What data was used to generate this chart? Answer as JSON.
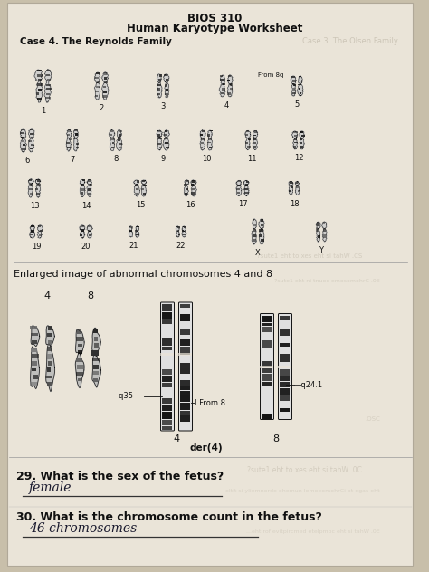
{
  "title_line1": "BIOS 310",
  "title_line2": "Human Karyotype Worksheet",
  "case_label": "Case 4. The Reynolds Family",
  "ghost_text_right": "Case 3. The Olsen Family",
  "enlarged_label": "Enlarged image of abnormal chromosomes 4 and 8",
  "q29_question": "29. What is the sex of the fetus?",
  "q29_answer": "female",
  "q30_question": "30. What is the chromosome count in the fetus?",
  "q30_answer": "46 chromosomes",
  "bg_color": "#c8bfaa",
  "paper_color": "#eae4d8",
  "paper_color2": "#ddd5c4",
  "text_color": "#111111",
  "ghost_color": "#b0a898",
  "answer_color": "#222244",
  "chr_dark": "#1a1a1a",
  "chr_mid": "#555555",
  "chr_light": "#aaaaaa",
  "from8_label": "From 8q",
  "q35_label": "q35 —",
  "from8_label2": "I From 8",
  "q241_label": "—q24.1",
  "der4_label": "der(4)",
  "label4a": "4",
  "label8a": "8",
  "label4b": "4",
  "label8b": "8",
  "labelY": "Y",
  "labelX": "X",
  "row1_labels": [
    "1",
    "2",
    "3",
    "4",
    "5"
  ],
  "row2_labels": [
    "6",
    "7",
    "8",
    "9",
    "10",
    "11",
    "12"
  ],
  "row3_labels": [
    "13",
    "14",
    "15",
    "16",
    "17",
    "18"
  ],
  "row4_labels": [
    "19",
    "20",
    "21",
    "22",
    "X",
    "Y"
  ]
}
